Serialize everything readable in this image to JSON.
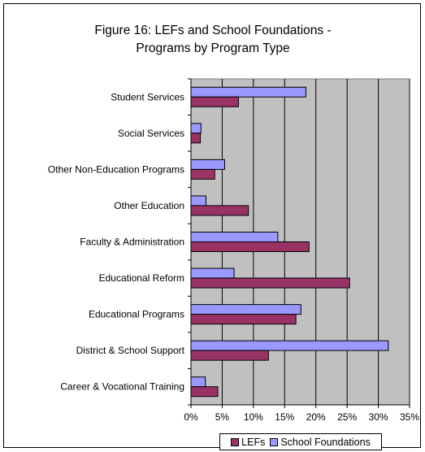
{
  "chart_data": {
    "type": "bar",
    "orientation": "horizontal",
    "title_lines": [
      "Figure 16:  LEFs and School Foundations -",
      "Programs by Program Type"
    ],
    "categories": [
      "Student Services",
      "Social Services",
      "Other Non-Education Programs",
      "Other Education",
      "Faculty & Administration",
      "Educational Reform",
      "Educational Programs",
      "District & School Support",
      "Career & Vocational Training"
    ],
    "series": [
      {
        "name": "School Foundations",
        "color": "#9999ff",
        "values": [
          18.4,
          1.6,
          5.4,
          2.4,
          13.9,
          6.9,
          17.6,
          31.6,
          2.3
        ]
      },
      {
        "name": "LEFs",
        "color": "#993366",
        "values": [
          7.6,
          1.5,
          3.8,
          9.2,
          18.9,
          25.4,
          16.8,
          12.4,
          4.3
        ]
      }
    ],
    "legend_order": [
      "LEFs",
      "School Foundations"
    ],
    "legend_position": "bottom-right",
    "xlim": [
      0,
      35
    ],
    "xticks": [
      "0%",
      "5%",
      "10%",
      "15%",
      "20%",
      "25%",
      "30%",
      "35%"
    ],
    "plot_background": "#c0c0c0",
    "grid": true
  }
}
